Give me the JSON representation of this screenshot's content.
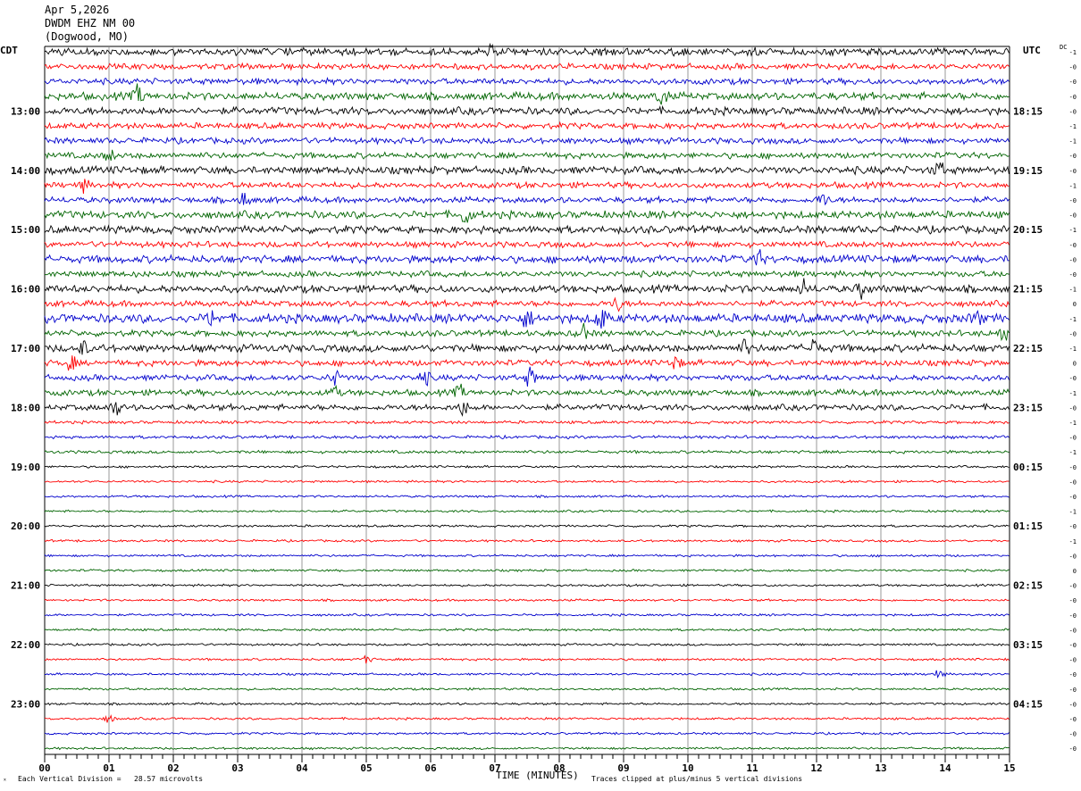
{
  "header": {
    "date": "Apr 5,2026",
    "station": "DWDM EHZ NM 00",
    "location": "(Dogwood, MO)"
  },
  "left_axis_label": "CDT",
  "right_axis_label": "UTC",
  "dc_label": "DC",
  "footer": {
    "scale_note": "Each Vertical Division =   28.57 microvolts",
    "clip_note": "Traces clipped at plus/minus 5 vertical divisions",
    "corner_mark": "ˣ"
  },
  "colors": {
    "trace_cycle": [
      "#000000",
      "#ff0000",
      "#0000cc",
      "#006400"
    ],
    "grid": "#808080"
  },
  "chart_data": {
    "type": "line",
    "title": "",
    "xlabel": "TIME (MINUTES)",
    "ylabel": "",
    "xlim": [
      0,
      15
    ],
    "x_ticks": [
      "00",
      "01",
      "02",
      "03",
      "04",
      "05",
      "06",
      "07",
      "08",
      "09",
      "10",
      "11",
      "12",
      "13",
      "14",
      "15"
    ],
    "rows": 48,
    "left_time_labels": [
      {
        "row": 4,
        "label": "13:00"
      },
      {
        "row": 8,
        "label": "14:00"
      },
      {
        "row": 12,
        "label": "15:00"
      },
      {
        "row": 16,
        "label": "16:00"
      },
      {
        "row": 20,
        "label": "17:00"
      },
      {
        "row": 24,
        "label": "18:00"
      },
      {
        "row": 28,
        "label": "19:00"
      },
      {
        "row": 32,
        "label": "20:00"
      },
      {
        "row": 36,
        "label": "21:00"
      },
      {
        "row": 40,
        "label": "22:00"
      },
      {
        "row": 44,
        "label": "23:00"
      }
    ],
    "right_time_labels": [
      {
        "row": 4,
        "label": "18:15"
      },
      {
        "row": 8,
        "label": "19:15"
      },
      {
        "row": 12,
        "label": "20:15"
      },
      {
        "row": 16,
        "label": "21:15"
      },
      {
        "row": 20,
        "label": "22:15"
      },
      {
        "row": 24,
        "label": "23:15"
      },
      {
        "row": 28,
        "label": "00:15"
      },
      {
        "row": 32,
        "label": "01:15"
      },
      {
        "row": 36,
        "label": "02:15"
      },
      {
        "row": 40,
        "label": "03:15"
      },
      {
        "row": 44,
        "label": "04:15"
      }
    ],
    "dc_offsets": [
      "-1",
      "-0",
      "-0",
      "-0",
      "-0",
      "-1",
      "-1",
      "-0",
      "-0",
      "-1",
      "-0",
      "-0",
      "-1",
      "-0",
      "-0",
      "-0",
      "-1",
      "0",
      "-1",
      "-0",
      "-1",
      "0",
      "-0",
      "-1",
      "-0",
      "-1",
      "-0",
      "-1",
      "-0",
      "-0",
      "-0",
      "-1",
      "-0",
      "-1",
      "-0",
      "0",
      "-0",
      "-0",
      "-0",
      "-0",
      "-0",
      "-0",
      "-0",
      "-0",
      "-0",
      "-0",
      "-0",
      "-0"
    ],
    "row_amplitude": [
      5,
      4,
      4,
      5,
      5,
      4,
      4,
      4,
      5,
      4,
      4,
      5,
      5,
      4,
      5,
      4,
      5,
      4,
      6,
      4,
      5,
      4,
      4,
      4,
      4,
      2,
      2,
      2,
      1.5,
      1.5,
      1.5,
      1.5,
      1.5,
      1.5,
      1.5,
      1.5,
      1.5,
      1.5,
      1.5,
      1.5,
      1.5,
      1.5,
      1.5,
      1.5,
      1.5,
      1.5,
      1.5,
      1.5
    ],
    "events": [
      {
        "row": 0,
        "minute": 6.9,
        "amp": 8
      },
      {
        "row": 3,
        "minute": 1.45,
        "amp": 10
      },
      {
        "row": 3,
        "minute": 9.6,
        "amp": 9
      },
      {
        "row": 7,
        "minute": 1.0,
        "amp": 6
      },
      {
        "row": 8,
        "minute": 13.9,
        "amp": 8
      },
      {
        "row": 9,
        "minute": 0.6,
        "amp": 6
      },
      {
        "row": 10,
        "minute": 3.1,
        "amp": 7
      },
      {
        "row": 10,
        "minute": 12.1,
        "amp": 7
      },
      {
        "row": 11,
        "minute": 6.55,
        "amp": 10
      },
      {
        "row": 14,
        "minute": 11.1,
        "amp": 8
      },
      {
        "row": 16,
        "minute": 11.8,
        "amp": 8
      },
      {
        "row": 16,
        "minute": 12.7,
        "amp": 8
      },
      {
        "row": 17,
        "minute": 8.9,
        "amp": 7
      },
      {
        "row": 18,
        "minute": 2.6,
        "amp": 8
      },
      {
        "row": 18,
        "minute": 7.5,
        "amp": 9
      },
      {
        "row": 18,
        "minute": 8.65,
        "amp": 12
      },
      {
        "row": 18,
        "minute": 14.5,
        "amp": 7
      },
      {
        "row": 19,
        "minute": 8.35,
        "amp": 10
      },
      {
        "row": 19,
        "minute": 14.9,
        "amp": 9
      },
      {
        "row": 20,
        "minute": 0.6,
        "amp": 7
      },
      {
        "row": 20,
        "minute": 10.9,
        "amp": 8
      },
      {
        "row": 20,
        "minute": 11.95,
        "amp": 9
      },
      {
        "row": 21,
        "minute": 0.4,
        "amp": 8
      },
      {
        "row": 21,
        "minute": 9.8,
        "amp": 7
      },
      {
        "row": 22,
        "minute": 4.5,
        "amp": 8
      },
      {
        "row": 22,
        "minute": 5.9,
        "amp": 8
      },
      {
        "row": 22,
        "minute": 7.55,
        "amp": 10
      },
      {
        "row": 23,
        "minute": 4.5,
        "amp": 6
      },
      {
        "row": 23,
        "minute": 6.45,
        "amp": 7
      },
      {
        "row": 24,
        "minute": 1.1,
        "amp": 8
      },
      {
        "row": 24,
        "minute": 6.5,
        "amp": 8
      },
      {
        "row": 41,
        "minute": 5.0,
        "amp": 4
      },
      {
        "row": 42,
        "minute": 13.9,
        "amp": 5
      },
      {
        "row": 45,
        "minute": 1.0,
        "amp": 4
      }
    ]
  }
}
